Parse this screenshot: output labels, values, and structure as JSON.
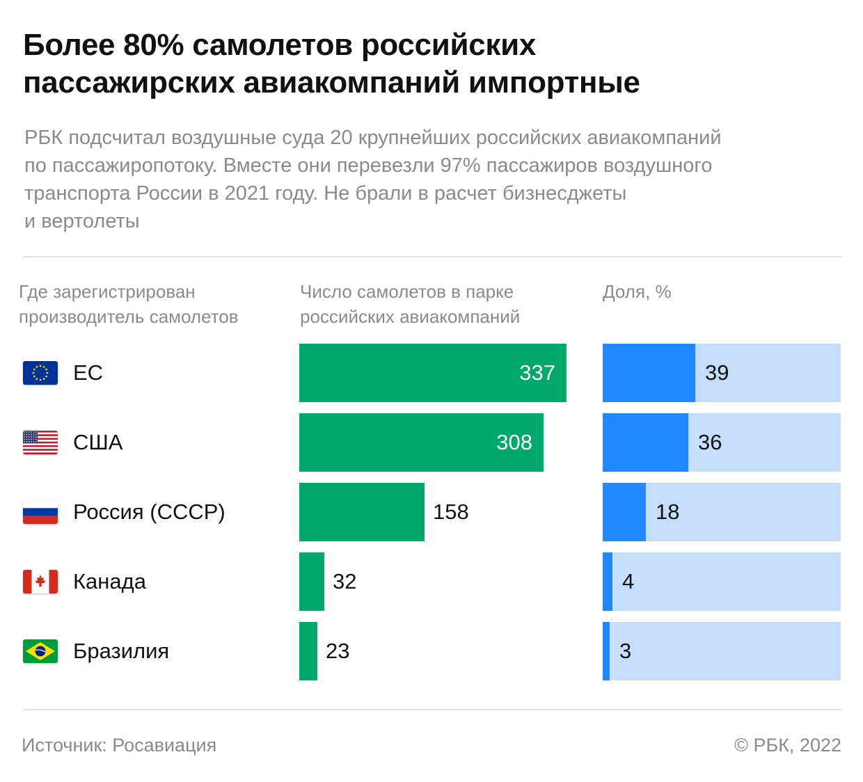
{
  "title": {
    "lines": [
      "Более 80% самолетов российских",
      "пассажирских авиакомпаний импортные"
    ]
  },
  "subtitle": {
    "lines": [
      "РБК подсчитал воздушные суда 20 крупнейших российских авиакомпаний",
      "по пассажиропотоку. Вместе они перевезли 97% пассажиров воздушного",
      "транспорта России в 2021 году. Не брали в расчет бизнесджеты",
      "и вертолеты"
    ]
  },
  "columns": {
    "country": [
      "Где зарегистрирован",
      "производитель самолетов"
    ],
    "count": [
      "Число самолетов в парке",
      "российских авиакомпаний"
    ],
    "share": [
      "Доля, %"
    ]
  },
  "colors": {
    "count_bar": "#00a86b",
    "share_fill": "#2288ff",
    "share_track": "#c5defb"
  },
  "chart_data": {
    "type": "bar",
    "categories": [
      "ЕС",
      "США",
      "Россия (СССР)",
      "Канада",
      "Бразилия"
    ],
    "flags": [
      "eu-flag-icon",
      "us-flag-icon",
      "russia-flag-icon",
      "canada-flag-icon",
      "brazil-flag-icon"
    ],
    "series": [
      {
        "values": [
          337,
          308,
          158,
          32,
          23
        ]
      },
      {
        "values": [
          39,
          36,
          18,
          4,
          3
        ]
      }
    ],
    "xlim_count": [
      0,
      337
    ],
    "xlim_share": [
      0,
      100
    ],
    "grid": false
  },
  "footer": {
    "source": "Источник: Росавиация",
    "copyright": "© РБК, 2022"
  }
}
